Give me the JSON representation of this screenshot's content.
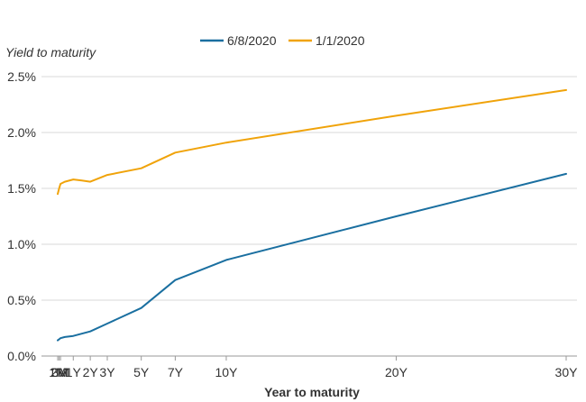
{
  "chart_data": {
    "type": "line",
    "title": "",
    "ylabel": "Yield to maturity",
    "xlabel": "Year to maturity",
    "ylim": [
      0,
      2.5
    ],
    "xlim_years": [
      0.0833,
      30
    ],
    "y_ticks": [
      {
        "value": 0.0,
        "label": "0.0%"
      },
      {
        "value": 0.5,
        "label": "0.5%"
      },
      {
        "value": 1.0,
        "label": "1.0%"
      },
      {
        "value": 1.5,
        "label": "1.5%"
      },
      {
        "value": 2.0,
        "label": "2.0%"
      },
      {
        "value": 2.5,
        "label": "2.5%"
      }
    ],
    "x_ticks": [
      {
        "value": 0.0833,
        "label": "1M"
      },
      {
        "value": 0.1667,
        "label": "2M"
      },
      {
        "value": 0.25,
        "label": "3M"
      },
      {
        "value": 1,
        "label": "1Y"
      },
      {
        "value": 2,
        "label": "2Y"
      },
      {
        "value": 3,
        "label": "3Y"
      },
      {
        "value": 5,
        "label": "5Y"
      },
      {
        "value": 7,
        "label": "7Y"
      },
      {
        "value": 10,
        "label": "10Y"
      },
      {
        "value": 20,
        "label": "20Y"
      },
      {
        "value": 30,
        "label": "30Y"
      }
    ],
    "grid": true,
    "legend_position": "top",
    "series": [
      {
        "name": "6/8/2020",
        "color": "#1a6fa0",
        "x": [
          0.0833,
          0.1667,
          0.25,
          0.5,
          1,
          1.5,
          2,
          3,
          5,
          7,
          10,
          20,
          30
        ],
        "values": [
          0.14,
          0.15,
          0.16,
          0.17,
          0.18,
          0.2,
          0.22,
          0.29,
          0.43,
          0.68,
          0.86,
          1.25,
          1.63
        ]
      },
      {
        "name": "1/1/2020",
        "color": "#f0a30a",
        "x": [
          0.0833,
          0.1667,
          0.25,
          0.5,
          1,
          1.5,
          2,
          3,
          5,
          7,
          10,
          20,
          30
        ],
        "values": [
          1.45,
          1.5,
          1.54,
          1.56,
          1.58,
          1.57,
          1.56,
          1.62,
          1.68,
          1.82,
          1.91,
          2.15,
          2.38
        ]
      }
    ]
  }
}
